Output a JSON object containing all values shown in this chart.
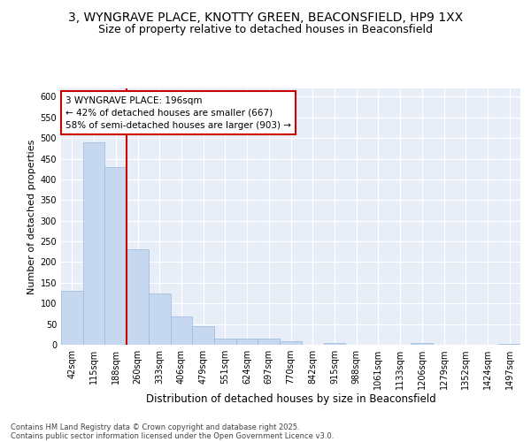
{
  "title": "3, WYNGRAVE PLACE, KNOTTY GREEN, BEACONSFIELD, HP9 1XX",
  "subtitle": "Size of property relative to detached houses in Beaconsfield",
  "xlabel": "Distribution of detached houses by size in Beaconsfield",
  "ylabel": "Number of detached properties",
  "categories": [
    "42sqm",
    "115sqm",
    "188sqm",
    "260sqm",
    "333sqm",
    "406sqm",
    "479sqm",
    "551sqm",
    "624sqm",
    "697sqm",
    "770sqm",
    "842sqm",
    "915sqm",
    "988sqm",
    "1061sqm",
    "1133sqm",
    "1206sqm",
    "1279sqm",
    "1352sqm",
    "1424sqm",
    "1497sqm"
  ],
  "values": [
    130,
    490,
    430,
    230,
    125,
    68,
    45,
    15,
    15,
    15,
    8,
    0,
    5,
    0,
    0,
    0,
    4,
    0,
    0,
    0,
    2
  ],
  "bar_color": "#c5d8f0",
  "bar_edge_color": "#99b8de",
  "annotation_text": "3 WYNGRAVE PLACE: 196sqm\n← 42% of detached houses are smaller (667)\n58% of semi-detached houses are larger (903) →",
  "annotation_box_color": "#ffffff",
  "annotation_box_edge_color": "#cc0000",
  "property_line_color": "#cc0000",
  "footer_line1": "Contains HM Land Registry data © Crown copyright and database right 2025.",
  "footer_line2": "Contains public sector information licensed under the Open Government Licence v3.0.",
  "ylim": [
    0,
    620
  ],
  "yticks": [
    0,
    50,
    100,
    150,
    200,
    250,
    300,
    350,
    400,
    450,
    500,
    550,
    600
  ],
  "background_color": "#e8eef8",
  "grid_color": "#ffffff",
  "title_fontsize": 10,
  "subtitle_fontsize": 9,
  "tick_fontsize": 7,
  "xlabel_fontsize": 8.5,
  "ylabel_fontsize": 8,
  "footer_fontsize": 6,
  "annotation_fontsize": 7.5
}
